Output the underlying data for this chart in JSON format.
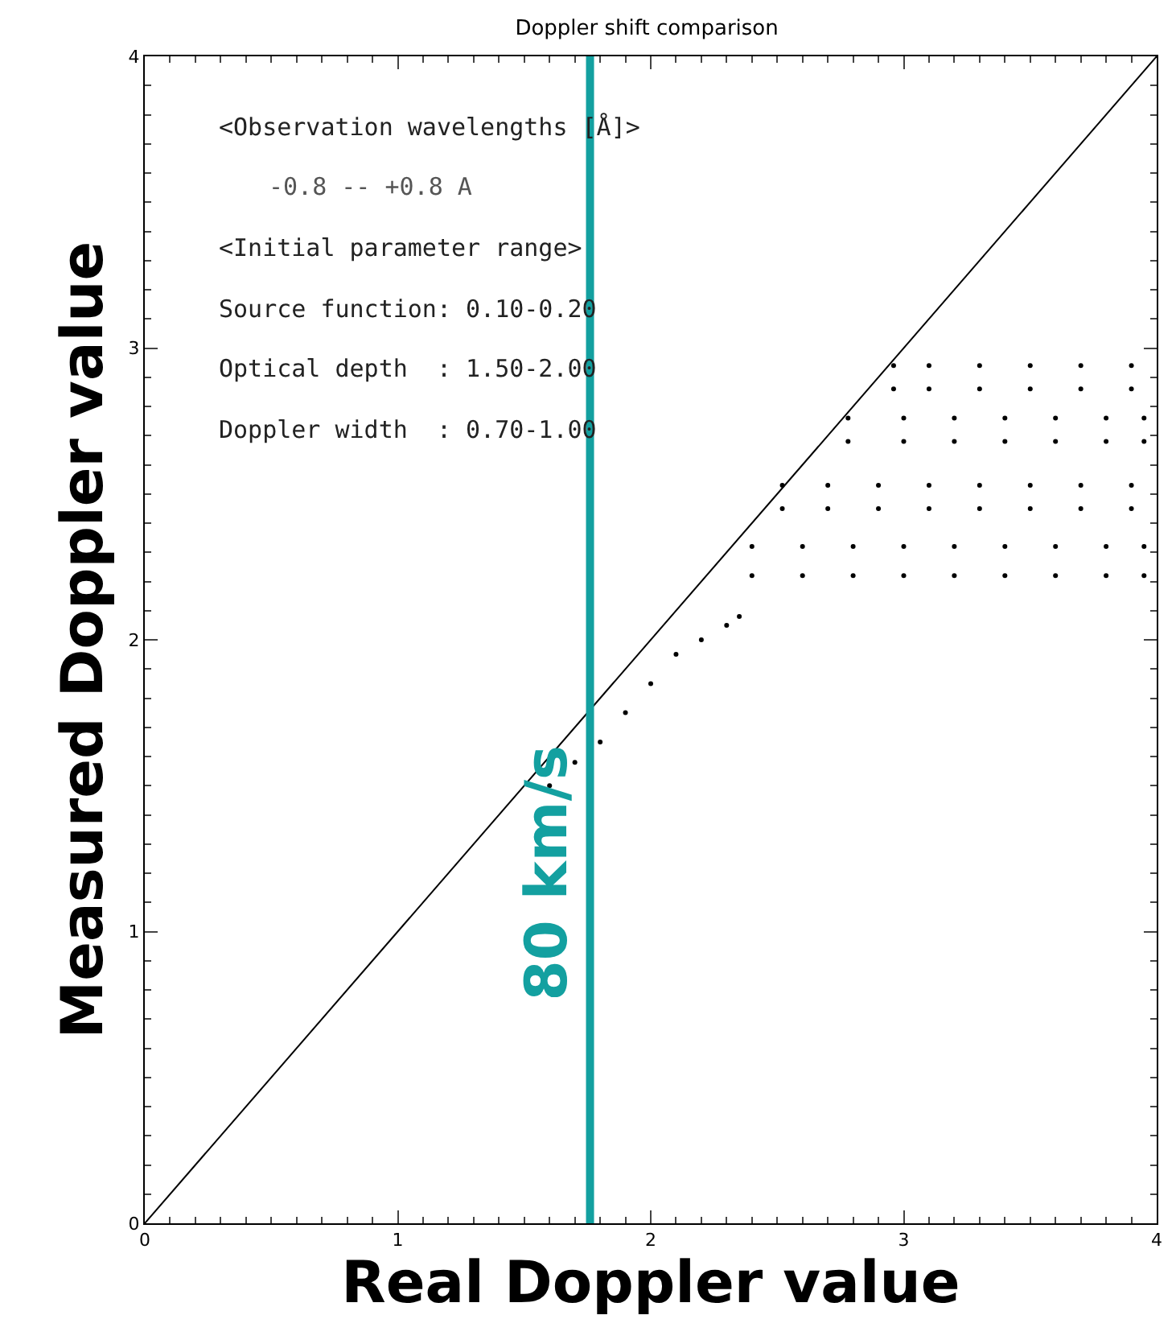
{
  "chart_data": {
    "type": "scatter",
    "title": "Doppler shift comparison",
    "xlabel": "Real Doppler value",
    "ylabel": "Measured Doppler value",
    "xlim": [
      0,
      4
    ],
    "ylim": [
      0,
      4
    ],
    "xticks": [
      0,
      1,
      2,
      3,
      4
    ],
    "yticks": [
      0,
      1,
      2,
      3,
      4
    ],
    "annotations": [
      "<Observation wavelengths [Å]>",
      "-0.8 -- +0.8 A",
      "<Initial parameter range>",
      "Source function: 0.10-0.20",
      "Optical depth  : 1.50-2.00",
      "Doppler width  : 0.70-1.00"
    ],
    "ref_lines": [
      {
        "axis": "x",
        "value": 1.76,
        "label": "80 km/s",
        "color": "#13a0a0"
      }
    ],
    "series": [
      {
        "type": "line",
        "color": "#000000",
        "x": [
          0,
          4
        ],
        "values": [
          0,
          4
        ],
        "line_style": "solid"
      },
      {
        "marker": "circle",
        "color": "#000000",
        "x": [
          2.96,
          3.1,
          3.3,
          3.5,
          3.7,
          3.9,
          2.96,
          3.1,
          3.3,
          3.5,
          3.7,
          3.9,
          2.78,
          3.0,
          3.2,
          3.4,
          3.6,
          3.8,
          3.95,
          2.78,
          3.0,
          3.2,
          3.4,
          3.6,
          3.8,
          3.95,
          2.52,
          2.7,
          2.9,
          3.1,
          3.3,
          3.5,
          3.7,
          3.9,
          2.52,
          2.7,
          2.9,
          3.1,
          3.3,
          3.5,
          3.7,
          3.9,
          2.4,
          2.6,
          2.8,
          3.0,
          3.2,
          3.4,
          3.6,
          3.8,
          3.95,
          2.4,
          2.6,
          2.8,
          3.0,
          3.2,
          3.4,
          3.6,
          3.8,
          3.95,
          1.6,
          1.7,
          1.8,
          1.9,
          2.0,
          2.1,
          2.2,
          2.3,
          2.35
        ],
        "values": [
          2.94,
          2.94,
          2.94,
          2.94,
          2.94,
          2.94,
          2.86,
          2.86,
          2.86,
          2.86,
          2.86,
          2.86,
          2.76,
          2.76,
          2.76,
          2.76,
          2.76,
          2.76,
          2.76,
          2.68,
          2.68,
          2.68,
          2.68,
          2.68,
          2.68,
          2.68,
          2.53,
          2.53,
          2.53,
          2.53,
          2.53,
          2.53,
          2.53,
          2.53,
          2.45,
          2.45,
          2.45,
          2.45,
          2.45,
          2.45,
          2.45,
          2.45,
          2.32,
          2.32,
          2.32,
          2.32,
          2.32,
          2.32,
          2.32,
          2.32,
          2.32,
          2.22,
          2.22,
          2.22,
          2.22,
          2.22,
          2.22,
          2.22,
          2.22,
          2.22,
          1.5,
          1.58,
          1.65,
          1.75,
          1.85,
          1.95,
          2.0,
          2.05,
          2.08
        ]
      }
    ]
  }
}
